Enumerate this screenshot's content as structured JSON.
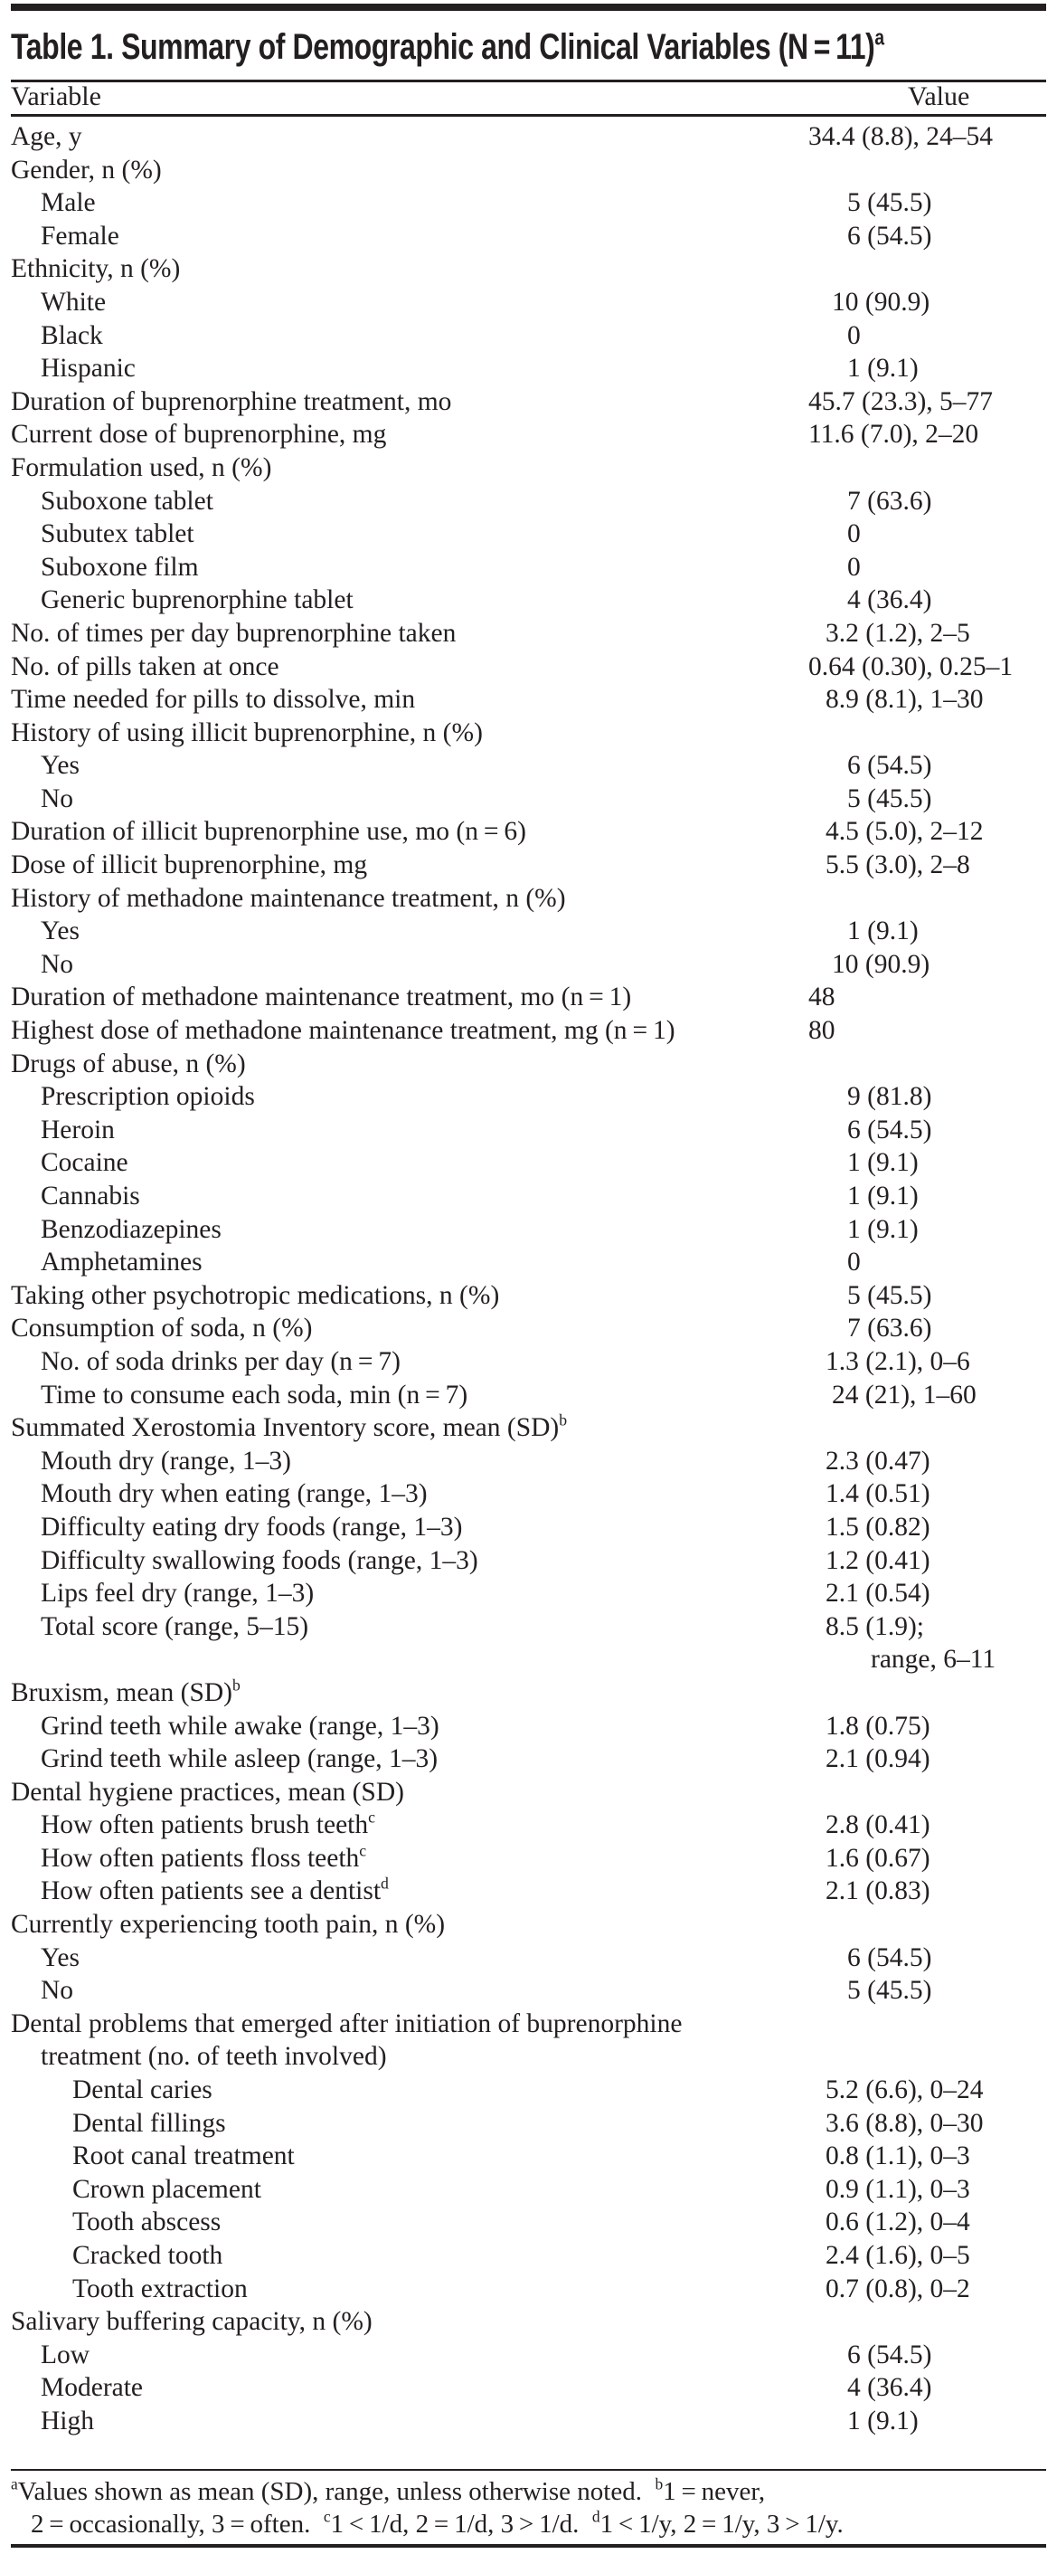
{
  "title": {
    "text": "Table 1. Summary of Demographic and Clinical Variables (N = 11)",
    "sup": "a"
  },
  "header": {
    "variable": "Variable",
    "value": "Value"
  },
  "rows": [
    {
      "label": "Age, y",
      "level": 0,
      "value": "34.4 (8.8), 24–54"
    },
    {
      "label": "Gender, n (%)",
      "level": 0,
      "value": ""
    },
    {
      "label": "Male",
      "level": 1,
      "value": "5 (45.5)"
    },
    {
      "label": "Female",
      "level": 1,
      "value": "6 (54.5)"
    },
    {
      "label": "Ethnicity, n (%)",
      "level": 0,
      "value": ""
    },
    {
      "label": "White",
      "level": 1,
      "value": "10 (90.9)"
    },
    {
      "label": "Black",
      "level": 1,
      "value": "0"
    },
    {
      "label": "Hispanic",
      "level": 1,
      "value": "1 (9.1)"
    },
    {
      "label": "Duration of buprenorphine treatment, mo",
      "level": 0,
      "value": "45.7 (23.3), 5–77"
    },
    {
      "label": "Current dose of buprenorphine, mg",
      "level": 0,
      "value": "11.6 (7.0), 2–20"
    },
    {
      "label": "Formulation used, n (%)",
      "level": 0,
      "value": ""
    },
    {
      "label": "Suboxone tablet",
      "level": 1,
      "value": "7 (63.6)"
    },
    {
      "label": "Subutex tablet",
      "level": 1,
      "value": "0"
    },
    {
      "label": "Suboxone film",
      "level": 1,
      "value": "0"
    },
    {
      "label": "Generic buprenorphine tablet",
      "level": 1,
      "value": "4 (36.4)"
    },
    {
      "label": "No. of times per day buprenorphine taken",
      "level": 0,
      "value": "3.2 (1.2),  2–5"
    },
    {
      "label": "No. of pills taken at once",
      "level": 0,
      "value": "0.64 (0.30), 0.25–1"
    },
    {
      "label": "Time needed for pills to dissolve, min",
      "level": 0,
      "value": "8.9 (8.1), 1–30"
    },
    {
      "label": "History of using illicit buprenorphine, n (%)",
      "level": 0,
      "value": ""
    },
    {
      "label": "Yes",
      "level": 1,
      "value": "6 (54.5)"
    },
    {
      "label": "No",
      "level": 1,
      "value": "5 (45.5)"
    },
    {
      "label": "Duration of illicit buprenorphine use, mo (n = 6)",
      "level": 0,
      "value": "4.5 (5.0), 2–12"
    },
    {
      "label": "Dose of illicit buprenorphine, mg",
      "level": 0,
      "value": "5.5 (3.0), 2–8"
    },
    {
      "label": "History of methadone maintenance treatment, n (%)",
      "level": 0,
      "value": ""
    },
    {
      "label": "Yes",
      "level": 1,
      "value": "1 (9.1)"
    },
    {
      "label": "No",
      "level": 1,
      "value": "10 (90.9)"
    },
    {
      "label": "Duration of methadone maintenance treatment, mo (n = 1)",
      "level": 0,
      "value": "48"
    },
    {
      "label": "Highest dose of methadone maintenance treatment, mg (n = 1)",
      "level": 0,
      "value": "80"
    },
    {
      "label": "Drugs of abuse, n (%)",
      "level": 0,
      "value": ""
    },
    {
      "label": "Prescription opioids",
      "level": 1,
      "value": "9 (81.8)"
    },
    {
      "label": "Heroin",
      "level": 1,
      "value": "6 (54.5)"
    },
    {
      "label": "Cocaine",
      "level": 1,
      "value": "1 (9.1)"
    },
    {
      "label": "Cannabis",
      "level": 1,
      "value": "1 (9.1)"
    },
    {
      "label": "Benzodiazepines",
      "level": 1,
      "value": "1 (9.1)"
    },
    {
      "label": "Amphetamines",
      "level": 1,
      "value": "0"
    },
    {
      "label": "Taking other psychotropic medications, n (%)",
      "level": 0,
      "value": "5 (45.5)"
    },
    {
      "label": "Consumption of soda, n (%)",
      "level": 0,
      "value": "7 (63.6)"
    },
    {
      "label": "No. of soda drinks per day (n = 7)",
      "level": 1,
      "value": "1.3 (2.1), 0–6"
    },
    {
      "label": "Time to consume each soda, min (n = 7)",
      "level": 1,
      "value": "24 (21), 1–60"
    },
    {
      "label": "Summated Xerostomia Inventory score, mean (SD)",
      "sup": "b",
      "level": 0,
      "value": ""
    },
    {
      "label": "Mouth dry (range, 1–3)",
      "level": 1,
      "value": "2.3 (0.47)"
    },
    {
      "label": "Mouth dry when eating (range, 1–3)",
      "level": 1,
      "value": "1.4 (0.51)"
    },
    {
      "label": "Difficulty eating dry foods (range, 1–3)",
      "level": 1,
      "value": "1.5 (0.82)"
    },
    {
      "label": "Difficulty swallowing foods (range, 1–3)",
      "level": 1,
      "value": "1.2 (0.41)"
    },
    {
      "label": "Lips feel dry (range, 1–3)",
      "level": 1,
      "value": "2.1 (0.54)"
    },
    {
      "label": "Total score (range, 5–15)",
      "level": 1,
      "value": "8.5 (1.9);"
    },
    {
      "label": "",
      "level": 1,
      "value": "range, 6–11",
      "cont": true
    },
    {
      "label": "Bruxism, mean (SD)",
      "sup": "b",
      "level": 0,
      "value": ""
    },
    {
      "label": "Grind teeth while awake (range, 1–3)",
      "level": 1,
      "value": "1.8 (0.75)"
    },
    {
      "label": "Grind teeth while asleep (range, 1–3)",
      "level": 1,
      "value": "2.1 (0.94)"
    },
    {
      "label": "Dental hygiene practices, mean (SD)",
      "level": 0,
      "value": ""
    },
    {
      "label": "How often patients brush teeth",
      "sup": "c",
      "level": 1,
      "value": "2.8 (0.41)"
    },
    {
      "label": "How often patients floss teeth",
      "sup": "c",
      "level": 1,
      "value": "1.6 (0.67)"
    },
    {
      "label": "How often patients see a dentist",
      "sup": "d",
      "level": 1,
      "value": "2.1 (0.83)"
    },
    {
      "label": "Currently experiencing tooth pain, n (%)",
      "level": 0,
      "value": ""
    },
    {
      "label": "Yes",
      "level": 1,
      "value": "6 (54.5)"
    },
    {
      "label": "No",
      "level": 1,
      "value": "5 (45.5)"
    },
    {
      "label": "Dental problems that emerged after initiation of buprenorphine",
      "level": 0,
      "value": ""
    },
    {
      "label": "treatment (no. of teeth involved)",
      "level": 1,
      "value": ""
    },
    {
      "label": "Dental caries",
      "level": 2,
      "value": "5.2 (6.6), 0–24"
    },
    {
      "label": "Dental fillings",
      "level": 2,
      "value": "3.6 (8.8),  0–30"
    },
    {
      "label": "Root canal treatment",
      "level": 2,
      "value": "0.8 (1.1), 0–3"
    },
    {
      "label": "Crown placement",
      "level": 2,
      "value": "0.9 (1.1),  0–3"
    },
    {
      "label": "Tooth abscess",
      "level": 2,
      "value": "0.6 (1.2),  0–4"
    },
    {
      "label": "Cracked tooth",
      "level": 2,
      "value": "2.4 (1.6),  0–5"
    },
    {
      "label": "Tooth extraction",
      "level": 2,
      "value": "0.7 (0.8), 0–2"
    },
    {
      "label": "Salivary buffering capacity, n (%)",
      "level": 0,
      "value": ""
    },
    {
      "label": "Low",
      "level": 1,
      "value": "6 (54.5)"
    },
    {
      "label": "Moderate",
      "level": 1,
      "value": "4 (36.4)"
    },
    {
      "label": "High",
      "level": 1,
      "value": "1 (9.1)"
    }
  ],
  "footnote": {
    "line1": [
      {
        "sup": "a",
        "text": "Values shown as mean (SD), range, unless otherwise noted.  "
      },
      {
        "sup": "b",
        "text": "1 = never,"
      }
    ],
    "line2": [
      {
        "sup": "",
        "text": "2 = occasionally, 3 = often.  "
      },
      {
        "sup": "c",
        "text": "1 < 1/d, 2 = 1/d, 3 > 1/d.  "
      },
      {
        "sup": "d",
        "text": "1 < 1/y, 2 = 1/y, 3 > 1/y."
      }
    ]
  }
}
